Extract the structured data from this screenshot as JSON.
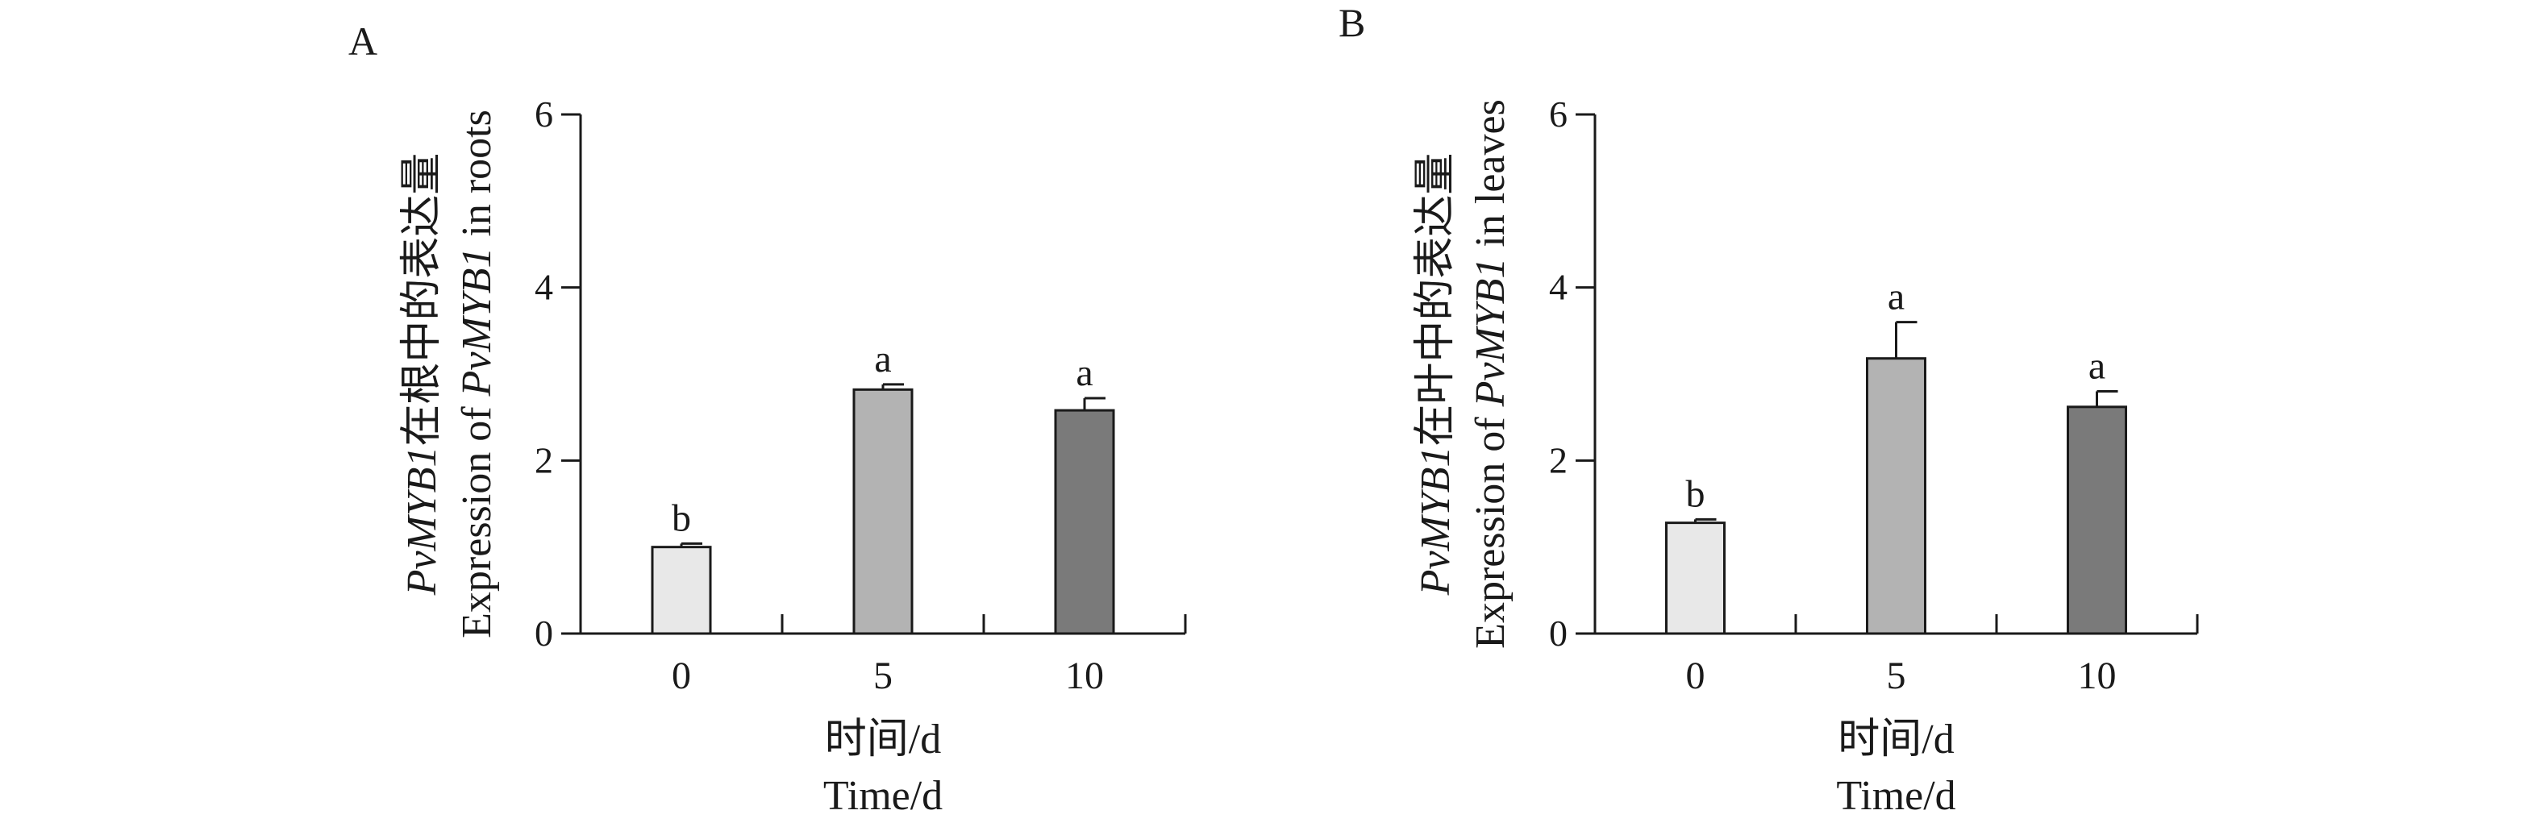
{
  "chart_data": [
    {
      "type": "bar",
      "panel_label": "A",
      "categories": [
        "0",
        "5",
        "10"
      ],
      "values": [
        1.0,
        2.82,
        2.58
      ],
      "errors": [
        0.04,
        0.06,
        0.14
      ],
      "significance": [
        "b",
        "a",
        "a"
      ],
      "bar_colors": [
        "#e8e8e8",
        "#b3b3b3",
        "#7a7a7a"
      ],
      "ylim": [
        0,
        6
      ],
      "yticks": [
        "0",
        "2",
        "4",
        "6"
      ],
      "ylabel_line1": {
        "gene": "PvMYB1",
        "suffix": "在根中的表达量"
      },
      "ylabel_line2": {
        "prefix": "Expression of ",
        "gene": "PvMYB1",
        "suffix": " in roots"
      },
      "xlabel_line1": "时间/d",
      "xlabel_line2": "Time/d"
    },
    {
      "type": "bar",
      "panel_label": "B",
      "categories": [
        "0",
        "5",
        "10"
      ],
      "values": [
        1.28,
        3.18,
        2.62
      ],
      "errors": [
        0.04,
        0.42,
        0.18
      ],
      "significance": [
        "b",
        "a",
        "a"
      ],
      "bar_colors": [
        "#e8e8e8",
        "#b3b3b3",
        "#7a7a7a"
      ],
      "ylim": [
        0,
        6
      ],
      "yticks": [
        "0",
        "2",
        "4",
        "6"
      ],
      "ylabel_line1": {
        "gene": "PvMYB1",
        "suffix": "在叶中的表达量"
      },
      "ylabel_line2": {
        "prefix": "Expression of ",
        "gene": "PvMYB1",
        "suffix": " in leaves"
      },
      "xlabel_line1": "时间/d",
      "xlabel_line2": "Time/d"
    }
  ],
  "colors": {
    "axis": "#1a1a1a",
    "bar_stroke": "#1a1a1a"
  }
}
